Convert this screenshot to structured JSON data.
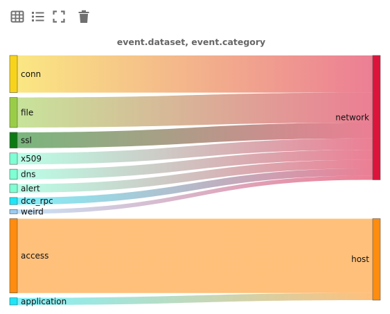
{
  "toolbar": {
    "icons": [
      "table-icon",
      "list-icon",
      "fullscreen-icon",
      "trash-icon"
    ],
    "icon_color": "#707070"
  },
  "chart_data": {
    "type": "sankey",
    "title": "event.dataset, event.category",
    "sources": [
      {
        "name": "conn",
        "color": "#F7D31C",
        "value": 26
      },
      {
        "name": "file",
        "color": "#9ACD47",
        "value": 21
      },
      {
        "name": "ssl",
        "color": "#0B7A12",
        "value": 11
      },
      {
        "name": "x509",
        "color": "#7FFFD4",
        "value": 8
      },
      {
        "name": "dns",
        "color": "#7FFFD4",
        "value": 7
      },
      {
        "name": "alert",
        "color": "#7FFFD4",
        "value": 6
      },
      {
        "name": "dce_rpc",
        "color": "#1CE6F7",
        "value": 5
      },
      {
        "name": "weird",
        "color": "#9CCCF0",
        "value": 3
      },
      {
        "name": "access",
        "color": "#FF8C0E",
        "value": 52
      },
      {
        "name": "application",
        "color": "#1CE6F7",
        "value": 5
      }
    ],
    "targets": [
      {
        "name": "network",
        "color": "#DC143C",
        "value": 87
      },
      {
        "name": "host",
        "color": "#FF8C0E",
        "value": 57
      }
    ],
    "links": [
      {
        "source": "conn",
        "target": "network",
        "value": 26
      },
      {
        "source": "file",
        "target": "network",
        "value": 21
      },
      {
        "source": "ssl",
        "target": "network",
        "value": 11
      },
      {
        "source": "x509",
        "target": "network",
        "value": 8
      },
      {
        "source": "dns",
        "target": "network",
        "value": 7
      },
      {
        "source": "alert",
        "target": "network",
        "value": 6
      },
      {
        "source": "dce_rpc",
        "target": "network",
        "value": 5
      },
      {
        "source": "weird",
        "target": "network",
        "value": 3
      },
      {
        "source": "access",
        "target": "host",
        "value": 52
      },
      {
        "source": "application",
        "target": "host",
        "value": 5
      }
    ]
  }
}
